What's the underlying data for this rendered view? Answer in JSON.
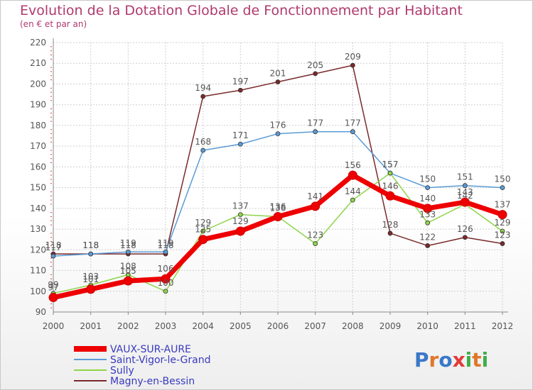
{
  "title": "Evolution de la Dotation Globale de Fonctionnement par Habitant",
  "subtitle": "(en € et par an)",
  "logo_text": "Proxiti",
  "chart_data": {
    "type": "line",
    "x": [
      2000,
      2001,
      2002,
      2003,
      2004,
      2005,
      2006,
      2007,
      2008,
      2009,
      2010,
      2011,
      2012
    ],
    "ylim": [
      90,
      220
    ],
    "yticks": [
      90,
      100,
      110,
      120,
      130,
      140,
      150,
      160,
      170,
      180,
      190,
      200,
      210,
      220
    ],
    "grid": true,
    "legend_position": "bottom-left",
    "series": [
      {
        "name": "VAUX-SUR-AURE",
        "color": "#ee0000",
        "values": [
          97,
          101,
          105,
          106,
          125,
          129,
          136,
          141,
          156,
          146,
          140,
          143,
          137
        ]
      },
      {
        "name": "Saint-Vigor-le-Grand",
        "color": "#5b9bd5",
        "values": [
          117,
          118,
          119,
          119,
          168,
          171,
          176,
          177,
          177,
          157,
          150,
          151,
          150
        ]
      },
      {
        "name": "Sully",
        "color": "#8fd44a",
        "values": [
          99,
          103,
          108,
          100,
          129,
          137,
          136,
          123,
          144,
          157,
          133,
          142,
          129
        ]
      },
      {
        "name": "Magny-en-Bessin",
        "color": "#7a2a2a",
        "values": [
          118,
          118,
          118,
          118,
          194,
          197,
          201,
          205,
          209,
          128,
          122,
          126,
          123
        ]
      }
    ]
  }
}
